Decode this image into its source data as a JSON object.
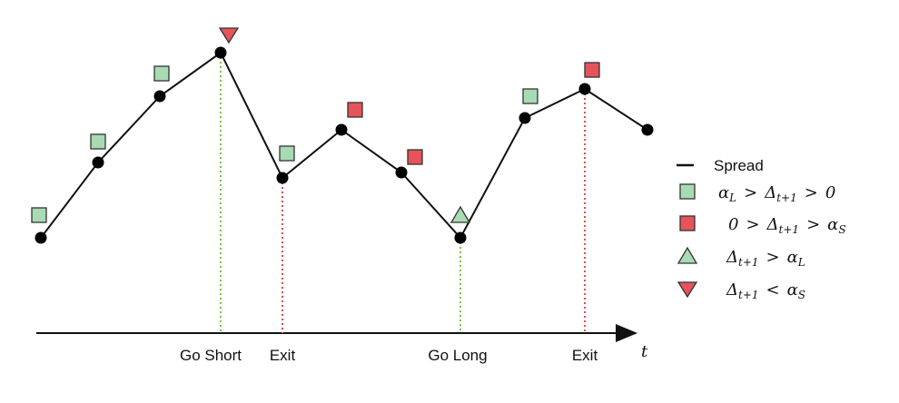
{
  "axis": {
    "time_label": "t"
  },
  "events": [
    {
      "label": "Go Short",
      "color": "#7ec24a"
    },
    {
      "label": "Exit",
      "color": "#d9534f"
    },
    {
      "label": "Go Long",
      "color": "#7ec24a"
    },
    {
      "label": "Exit",
      "color": "#d9534f"
    }
  ],
  "spread": {
    "steps": [
      0,
      1,
      2,
      3,
      4,
      5,
      6,
      7,
      8,
      9,
      10
    ],
    "markers": [
      "green-square",
      "green-square",
      "green-square",
      "red-triangle-down",
      "green-square",
      "red-square",
      "red-square",
      "green-triangle-up",
      "green-square",
      "red-square",
      "none"
    ]
  },
  "legend": {
    "spread": "Spread",
    "green_square": {
      "alpha": "α",
      "alpha_sub": "L",
      "gt1": ">",
      "delta": "Δ",
      "delta_sub": "t+1",
      "gt2": ">",
      "zero": "0"
    },
    "red_square": {
      "zero": "0",
      "gt1": ">",
      "delta": "Δ",
      "delta_sub": "t+1",
      "gt2": ">",
      "alpha": "α",
      "alpha_sub": "S"
    },
    "green_triangle": {
      "delta": "Δ",
      "delta_sub": "t+1",
      "op": ">",
      "alpha": "α",
      "alpha_sub": "L"
    },
    "red_triangle": {
      "delta": "Δ",
      "delta_sub": "t+1",
      "op": "<",
      "alpha": "α",
      "alpha_sub": "S"
    }
  },
  "colors": {
    "green_fill": "#a8dbb2",
    "red_fill": "#e4545a",
    "green_dotted": "#7ec24a",
    "red_dotted": "#d9534f",
    "line": "#111111"
  }
}
